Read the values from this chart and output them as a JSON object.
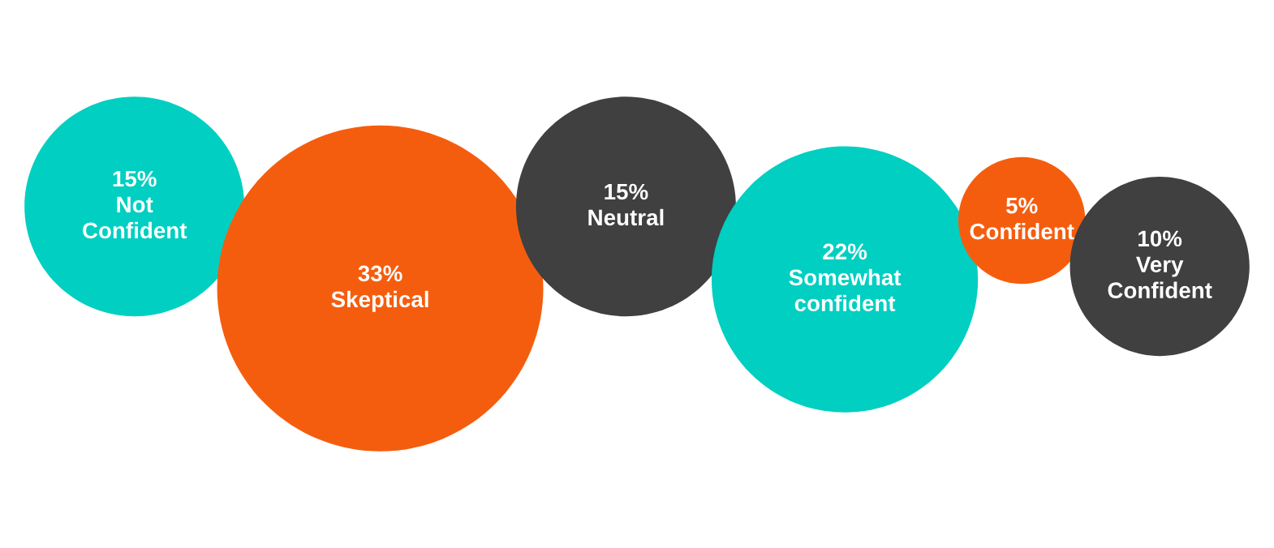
{
  "chart_data": {
    "type": "other",
    "categories": [
      "Not\nConfident",
      "Skeptical",
      "Neutral",
      "Somewhat\nconfident",
      "Confident",
      "Very\nConfident"
    ],
    "values": [
      15,
      33,
      15,
      22,
      5,
      10
    ],
    "value_labels": [
      "15%",
      "33%",
      "15%",
      "22%",
      "5%",
      "10%"
    ],
    "colors": [
      "#00cfc1",
      "#f55d0e",
      "#404040",
      "#00cfc1",
      "#f55d0e",
      "#404040"
    ]
  }
}
